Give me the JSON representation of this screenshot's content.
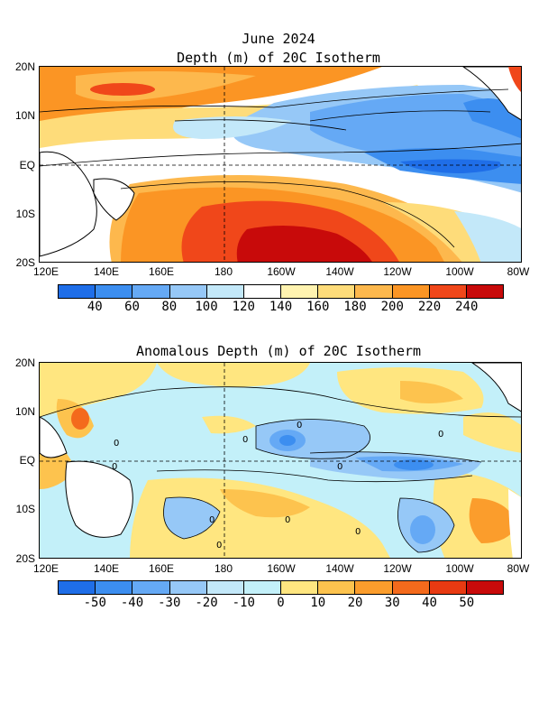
{
  "titles": {
    "date": "June 2024",
    "panel1": "Depth (m) of 20C Isotherm",
    "panel2": "Anomalous Depth (m) of 20C Isotherm"
  },
  "latitudes": [
    "20N",
    "10N",
    "EQ",
    "10S",
    "20S"
  ],
  "longitudes": [
    "120E",
    "140E",
    "160E",
    "180",
    "160W",
    "140W",
    "120W",
    "100W",
    "80W"
  ],
  "colorbar1": {
    "colors": [
      "#1f6ee8",
      "#3c8ef0",
      "#65a9f5",
      "#96c8f7",
      "#c3e8f9",
      "#ffffff",
      "#fff3b0",
      "#fedc7a",
      "#fdb84d",
      "#fb9524",
      "#f0471a",
      "#c80a0a"
    ],
    "labels": [
      "40",
      "60",
      "80",
      "100",
      "120",
      "140",
      "160",
      "180",
      "200",
      "220",
      "240"
    ]
  },
  "colorbar2": {
    "colors": [
      "#1f6ee8",
      "#3c8ef0",
      "#65a9f5",
      "#96c8f7",
      "#c3e8f9",
      "#c3f0f9",
      "#ffe680",
      "#fdc34e",
      "#fb9d2c",
      "#f46a1c",
      "#e83a12",
      "#c80a0a"
    ],
    "labels": [
      "-50",
      "-40",
      "-30",
      "-20",
      "-10",
      "0",
      "10",
      "20",
      "30",
      "40",
      "50"
    ]
  },
  "contour_labels": [
    "0",
    "0",
    "0",
    "0",
    "0",
    "0",
    "0",
    "0",
    "0",
    "0"
  ]
}
